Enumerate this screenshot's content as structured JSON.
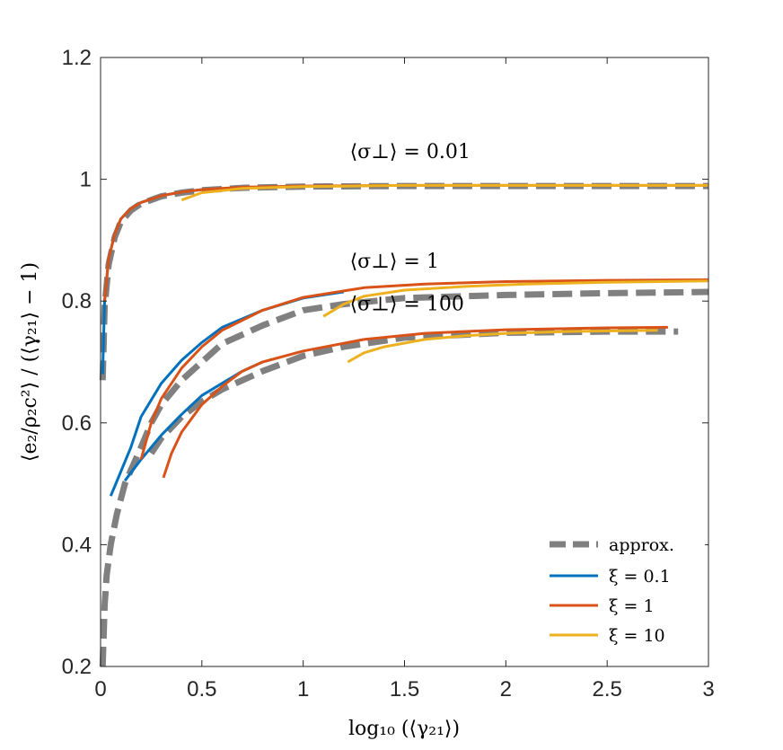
{
  "chart_data": {
    "type": "line",
    "title": "",
    "xlabel": "log₁₀ (⟨γ₂₁⟩)",
    "ylabel": "⟨e₂/ρ₂c²⟩ / (⟨γ₂₁⟩ − 1)",
    "xlim": [
      0,
      3
    ],
    "ylim": [
      0.2,
      1.2
    ],
    "xticks": [
      0,
      0.5,
      1,
      1.5,
      2,
      2.5,
      3
    ],
    "xtick_labels": [
      "0",
      "0.5",
      "1",
      "1.5",
      "2",
      "2.5",
      "3"
    ],
    "yticks": [
      0.2,
      0.4,
      0.6,
      0.8,
      1,
      1.2
    ],
    "ytick_labels": [
      "0.2",
      "0.4",
      "0.6",
      "0.8",
      "1",
      "1.2"
    ],
    "grid": false,
    "legend_position": "bottom-right",
    "legend": [
      {
        "label": "approx.",
        "color": "#808080",
        "style": "dashed"
      },
      {
        "label": "ξ = 0.1",
        "color": "#0072BD",
        "style": "solid"
      },
      {
        "label": "ξ = 1",
        "color": "#D95319",
        "style": "solid"
      },
      {
        "label": "ξ = 10",
        "color": "#EDB120",
        "style": "solid"
      }
    ],
    "annotations": [
      {
        "text": "⟨σ⊥⟩ = 0.01",
        "x": 1.23,
        "y": 1.035
      },
      {
        "text": "⟨σ⊥⟩ = 1",
        "x": 1.23,
        "y": 0.855
      },
      {
        "text": "⟨σ⊥⟩ = 100",
        "x": 1.23,
        "y": 0.785
      }
    ],
    "series": [
      {
        "name": "approx. σ=0.01",
        "group": "approx",
        "color": "#808080",
        "style": "dashed",
        "x": [
          0.01,
          0.02,
          0.04,
          0.07,
          0.1,
          0.15,
          0.2,
          0.3,
          0.4,
          0.5,
          0.7,
          1,
          1.5,
          2,
          2.5,
          3
        ],
        "y": [
          0.67,
          0.79,
          0.86,
          0.905,
          0.93,
          0.949,
          0.96,
          0.972,
          0.978,
          0.982,
          0.986,
          0.988,
          0.989,
          0.989,
          0.989,
          0.989
        ]
      },
      {
        "name": "approx. σ=1",
        "group": "approx",
        "color": "#808080",
        "style": "dashed",
        "x": [
          0.01,
          0.02,
          0.03,
          0.05,
          0.08,
          0.12,
          0.16,
          0.2,
          0.25,
          0.3,
          0.4,
          0.5,
          0.6,
          0.8,
          1,
          1.2,
          1.5,
          2,
          2.5,
          3
        ],
        "y": [
          0.2,
          0.3,
          0.35,
          0.4,
          0.45,
          0.5,
          0.53,
          0.56,
          0.6,
          0.63,
          0.67,
          0.7,
          0.73,
          0.76,
          0.785,
          0.795,
          0.805,
          0.81,
          0.813,
          0.815
        ]
      },
      {
        "name": "approx. σ=100",
        "group": "approx",
        "color": "#808080",
        "style": "dashed",
        "x": [
          0.25,
          0.3,
          0.4,
          0.5,
          0.6,
          0.8,
          1,
          1.2,
          1.5,
          2,
          2.5,
          2.85
        ],
        "y": [
          0.55,
          0.575,
          0.61,
          0.635,
          0.655,
          0.685,
          0.71,
          0.725,
          0.74,
          0.748,
          0.75,
          0.75
        ]
      },
      {
        "name": "ξ = 0.1, σ=0.01",
        "group": "xi01",
        "color": "#0072BD",
        "style": "solid",
        "x": [
          0.01,
          0.02,
          0.04,
          0.07,
          0.1,
          0.15,
          0.2,
          0.3,
          0.4,
          0.5
        ],
        "y": [
          0.68,
          0.8,
          0.87,
          0.91,
          0.935,
          0.952,
          0.962,
          0.973,
          0.979,
          0.983
        ]
      },
      {
        "name": "ξ = 0.1, σ=1",
        "group": "xi01",
        "color": "#0072BD",
        "style": "solid",
        "x": [
          0.05,
          0.1,
          0.15,
          0.2,
          0.3,
          0.4,
          0.5,
          0.6,
          0.8,
          1,
          1.2
        ],
        "y": [
          0.48,
          0.52,
          0.56,
          0.61,
          0.665,
          0.703,
          0.732,
          0.757,
          0.785,
          0.805,
          0.815
        ]
      },
      {
        "name": "ξ = 0.1, σ=100",
        "group": "xi01",
        "color": "#0072BD",
        "style": "solid",
        "x": [
          0.12,
          0.2,
          0.3,
          0.4,
          0.5,
          0.6,
          0.7,
          0.8
        ],
        "y": [
          0.505,
          0.54,
          0.58,
          0.614,
          0.645,
          0.665,
          0.685,
          0.7
        ]
      },
      {
        "name": "ξ = 1, σ=0.01",
        "group": "xi1",
        "color": "#D95319",
        "style": "solid",
        "x": [
          0.02,
          0.04,
          0.07,
          0.1,
          0.15,
          0.2,
          0.3,
          0.4,
          0.5,
          0.7,
          1,
          1.5,
          2,
          2.5,
          3
        ],
        "y": [
          0.8,
          0.87,
          0.91,
          0.935,
          0.952,
          0.962,
          0.973,
          0.979,
          0.983,
          0.987,
          0.989,
          0.99,
          0.99,
          0.99,
          0.99
        ]
      },
      {
        "name": "ξ = 1, σ=1",
        "group": "xi1",
        "color": "#D95319",
        "style": "solid",
        "x": [
          0.2,
          0.25,
          0.3,
          0.4,
          0.5,
          0.6,
          0.8,
          1,
          1.3,
          1.6,
          2,
          2.5,
          3
        ],
        "y": [
          0.54,
          0.6,
          0.64,
          0.69,
          0.725,
          0.752,
          0.785,
          0.806,
          0.822,
          0.828,
          0.832,
          0.834,
          0.835
        ]
      },
      {
        "name": "ξ = 1, σ=100",
        "group": "xi1",
        "color": "#D95319",
        "style": "solid",
        "x": [
          0.31,
          0.35,
          0.4,
          0.5,
          0.6,
          0.7,
          0.8,
          1,
          1.3,
          1.6,
          2,
          2.5,
          2.8
        ],
        "y": [
          0.51,
          0.55,
          0.585,
          0.63,
          0.66,
          0.685,
          0.7,
          0.718,
          0.737,
          0.747,
          0.753,
          0.756,
          0.757
        ]
      },
      {
        "name": "ξ = 10, σ=0.01",
        "group": "xi10",
        "color": "#EDB120",
        "style": "solid",
        "x": [
          0.4,
          0.5,
          0.7,
          1,
          1.5,
          2,
          2.5,
          3
        ],
        "y": [
          0.966,
          0.978,
          0.985,
          0.988,
          0.99,
          0.99,
          0.99,
          0.99
        ]
      },
      {
        "name": "ξ = 10, σ=1",
        "group": "xi10",
        "color": "#EDB120",
        "style": "solid",
        "x": [
          1.1,
          1.2,
          1.3,
          1.5,
          1.8,
          2.1,
          2.5,
          3
        ],
        "y": [
          0.775,
          0.795,
          0.808,
          0.818,
          0.824,
          0.828,
          0.831,
          0.833
        ]
      },
      {
        "name": "ξ = 10, σ=100",
        "group": "xi10",
        "color": "#EDB120",
        "style": "solid",
        "x": [
          1.22,
          1.3,
          1.4,
          1.6,
          1.8,
          2,
          2.3,
          2.75
        ],
        "y": [
          0.7,
          0.715,
          0.725,
          0.737,
          0.743,
          0.747,
          0.75,
          0.752
        ]
      }
    ]
  }
}
